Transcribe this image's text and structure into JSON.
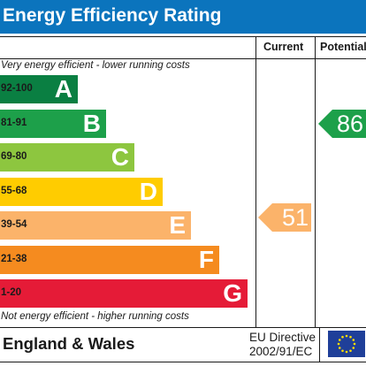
{
  "title": "Energy Efficiency Rating",
  "columns": {
    "current": "Current",
    "potential": "Potential"
  },
  "captions": {
    "top": "Very energy efficient - lower running costs",
    "bottom": "Not energy efficient - higher running costs"
  },
  "bands": [
    {
      "range": "92-100",
      "letter": "A",
      "color": "#0a7f42"
    },
    {
      "range": "81-91",
      "letter": "B",
      "color": "#1da04a"
    },
    {
      "range": "69-80",
      "letter": "C",
      "color": "#8dc63f"
    },
    {
      "range": "55-68",
      "letter": "D",
      "color": "#ffcc00"
    },
    {
      "range": "39-54",
      "letter": "E",
      "color": "#fbb36a"
    },
    {
      "range": "21-38",
      "letter": "F",
      "color": "#f58b1f"
    },
    {
      "range": "1-20",
      "letter": "G",
      "color": "#e51b37"
    }
  ],
  "current": {
    "value": "51",
    "band": "E",
    "color": "#fbb36a"
  },
  "potential": {
    "value": "86",
    "band": "B",
    "color": "#1da04a"
  },
  "footer": {
    "region": "England & Wales",
    "directive_line1": "EU Directive",
    "directive_line2": "2002/91/EC"
  },
  "colors": {
    "title_bar": "#0b74bd",
    "eu_flag": "#1f3f99",
    "eu_stars": "#ffde00"
  }
}
